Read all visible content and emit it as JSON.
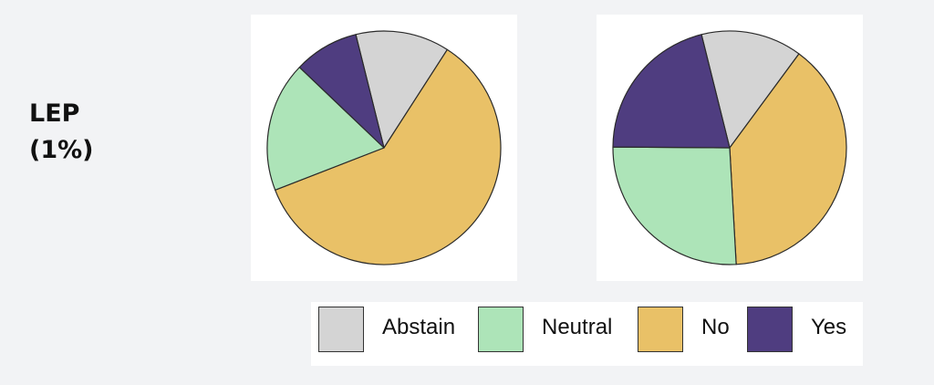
{
  "row_label": {
    "line1": "LEP",
    "line2": "(1%)"
  },
  "colors": {
    "Abstain": "#d4d4d4",
    "Neutral": "#ade4b8",
    "No": "#e9c167",
    "Yes": "#4f3d80"
  },
  "chart_data": [
    {
      "type": "pie",
      "slices": [
        {
          "label": "Abstain",
          "value": 13
        },
        {
          "label": "No",
          "value": 60
        },
        {
          "label": "Neutral",
          "value": 18
        },
        {
          "label": "Yes",
          "value": 9
        }
      ]
    },
    {
      "type": "pie",
      "slices": [
        {
          "label": "Abstain",
          "value": 14
        },
        {
          "label": "No",
          "value": 39
        },
        {
          "label": "Neutral",
          "value": 26
        },
        {
          "label": "Yes",
          "value": 21
        }
      ]
    }
  ],
  "legend": {
    "position": "bottom",
    "items": [
      "Abstain",
      "Neutral",
      "No",
      "Yes"
    ]
  }
}
